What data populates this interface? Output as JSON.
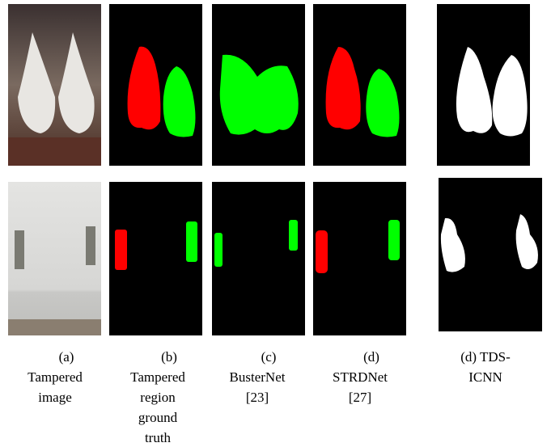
{
  "captions": [
    {
      "lines": [
        "(a)",
        "Tampered",
        "image"
      ]
    },
    {
      "lines": [
        "(b)",
        "Tampered",
        "region",
        "ground",
        "truth"
      ]
    },
    {
      "lines": [
        "(c)",
        "BusterNet",
        "[23]"
      ]
    },
    {
      "lines": [
        "(d)",
        "STRDNet",
        "[27]"
      ]
    },
    {
      "lines": [
        "(d) TDS-",
        "ICNN"
      ]
    }
  ]
}
